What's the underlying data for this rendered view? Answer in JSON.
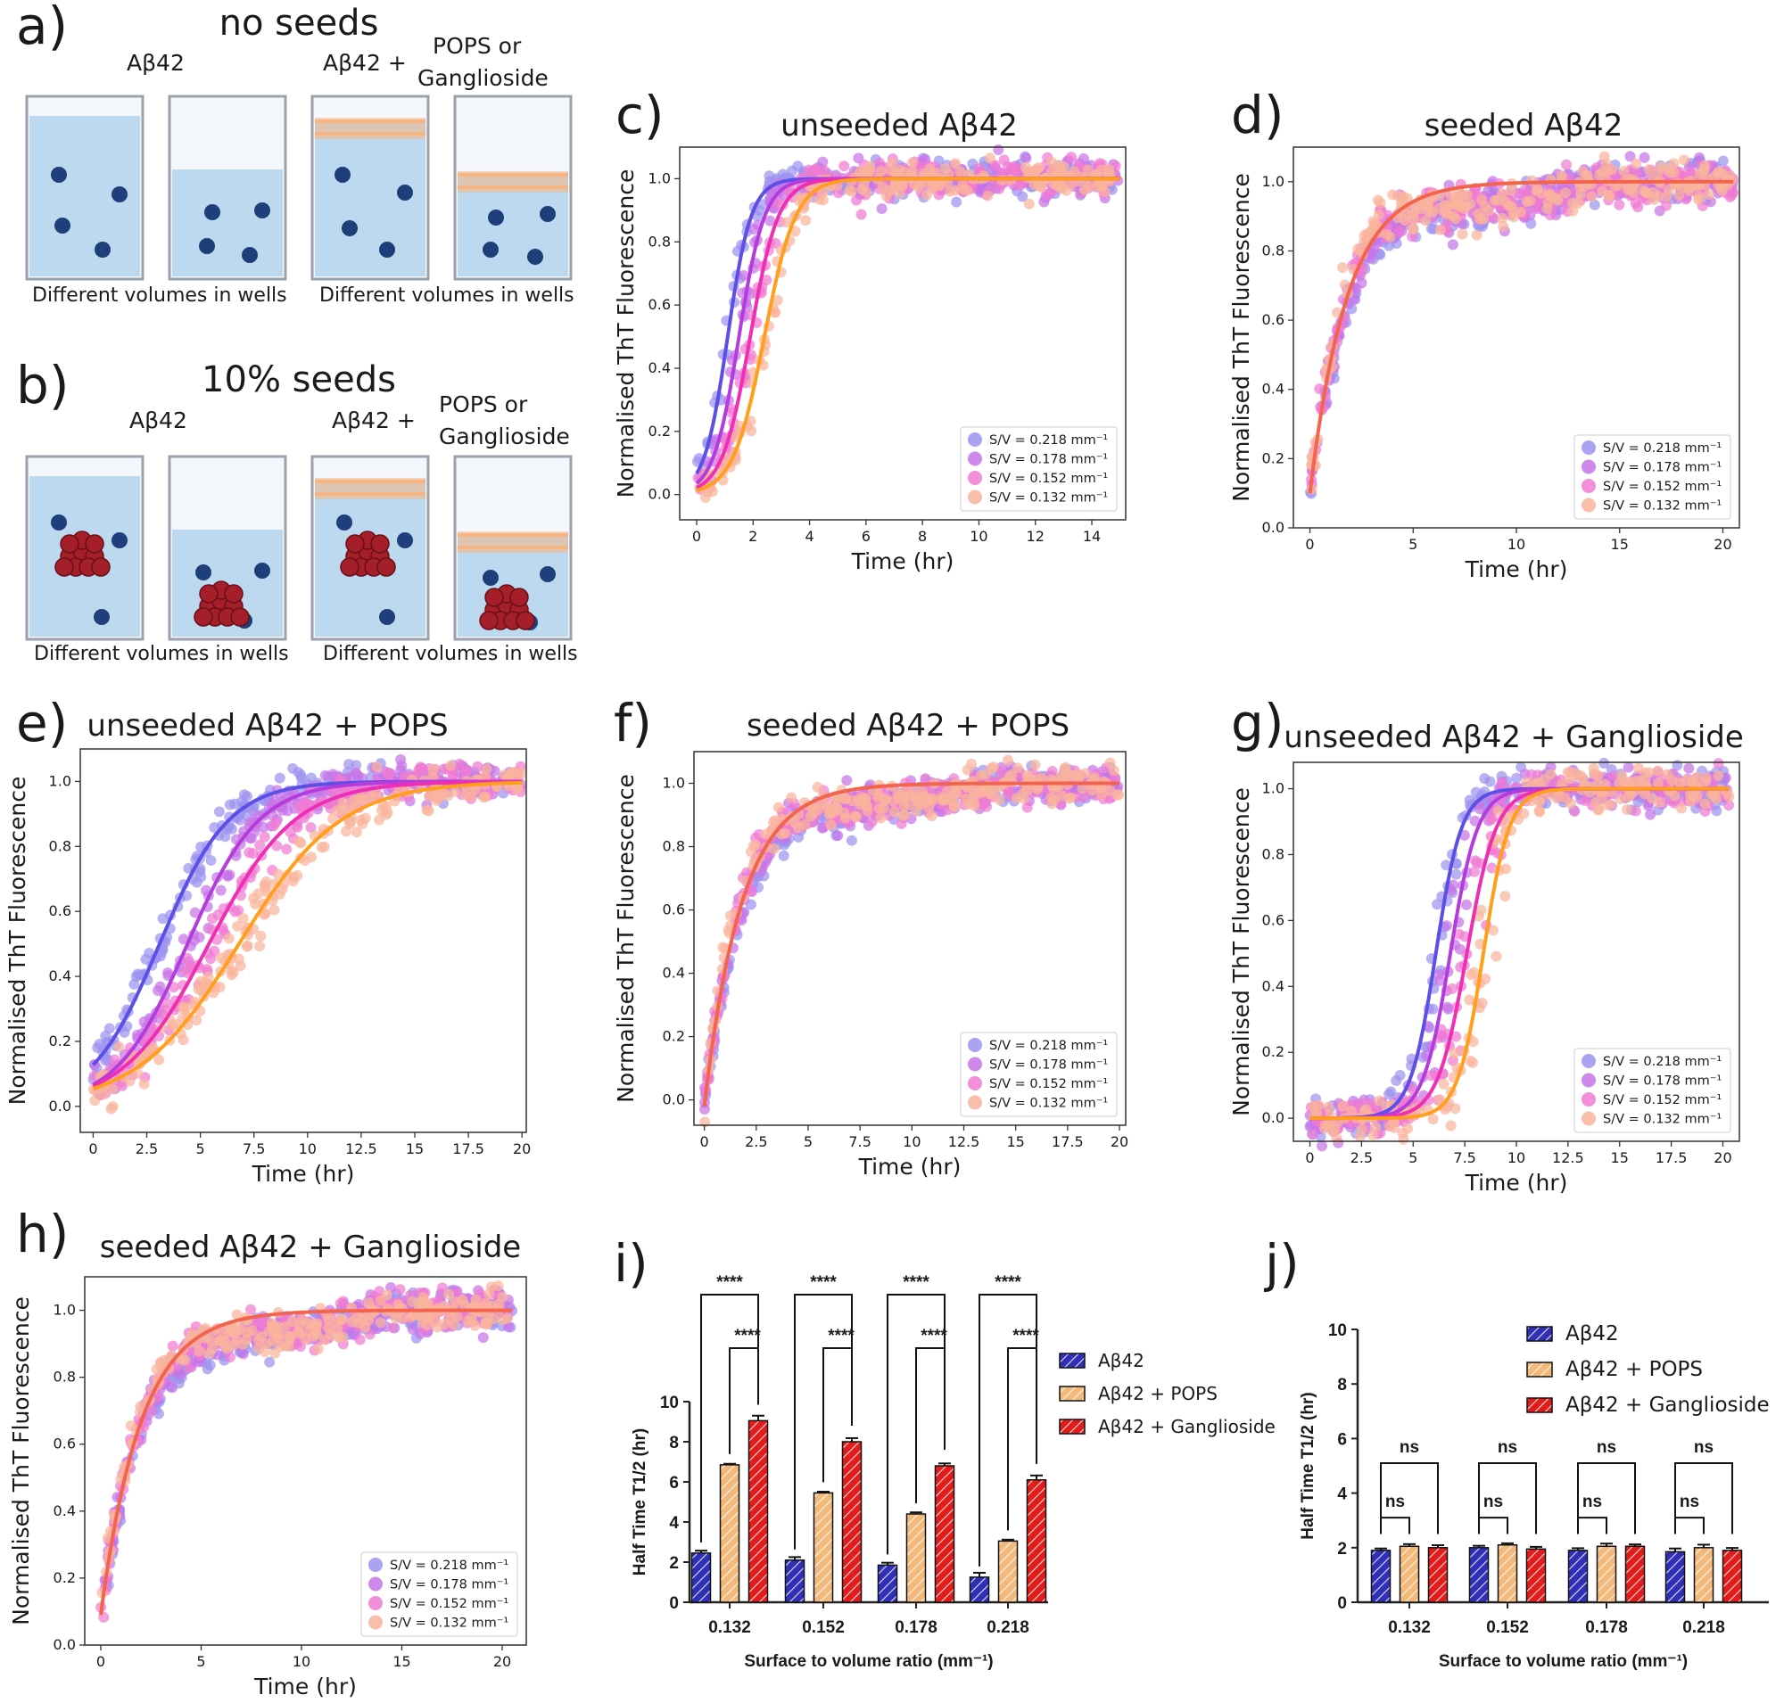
{
  "colors": {
    "s218": "#9c93f0",
    "s178": "#c774e8",
    "s152": "#f07bd2",
    "s132": "#f9b49c",
    "f218": "#5b4fe6",
    "f178": "#b43bdc",
    "f152": "#ee2fb4",
    "f132": "#ff9f1c",
    "fseed": "#f2644b",
    "bar_ab42": "#2f2fb8",
    "bar_pops": "#f3b97a",
    "bar_gang": "#e21b1b",
    "liquid": "#bcd9f0",
    "bead": "#1f3f7a",
    "seed": "#a41f2a",
    "lipid": "#f6b482"
  },
  "schematics": {
    "a": {
      "panel_label": "a)",
      "title": "no seeds",
      "left_label": "Aβ42",
      "right_label": "Aβ42  +",
      "lipid_label_1": "POPS or",
      "lipid_label_2": "Ganglioside",
      "caption_left": "Different volumes in wells",
      "caption_right": "Different volumes in wells"
    },
    "b": {
      "panel_label": "b)",
      "title": "10% seeds",
      "left_label": "Aβ42",
      "right_label": "Aβ42  +",
      "lipid_label_1": "POPS or",
      "lipid_label_2": "Ganglioside",
      "caption_left": "Different volumes in wells",
      "caption_right": "Different volumes in wells"
    }
  },
  "legend_labels": [
    "S/V = 0.218 mm⁻¹",
    "S/V = 0.178 mm⁻¹",
    "S/V = 0.152 mm⁻¹",
    "S/V = 0.132 mm⁻¹"
  ],
  "chart_data": [
    {
      "id": "c",
      "panel_label": "c)",
      "type": "scatter",
      "title": "unseeded Aβ42",
      "xlabel": "Time (hr)",
      "ylabel": "Normalised ThT Fluorescence",
      "xlim": [
        -0.6,
        15.2
      ],
      "ylim": [
        -0.08,
        1.1
      ],
      "xticks": [
        0,
        2,
        4,
        6,
        8,
        10,
        12,
        14
      ],
      "yticks": [
        0.0,
        0.2,
        0.4,
        0.6,
        0.8,
        1.0
      ],
      "tmax": 15,
      "series": [
        {
          "name": "S/V = 0.218 mm⁻¹",
          "t_half": 1.1,
          "rate": 2.4,
          "end": 1.0
        },
        {
          "name": "S/V = 0.178 mm⁻¹",
          "t_half": 1.5,
          "rate": 2.2,
          "end": 1.0
        },
        {
          "name": "S/V = 0.152 mm⁻¹",
          "t_half": 1.9,
          "rate": 2.0,
          "end": 1.0
        },
        {
          "name": "S/V = 0.132 mm⁻¹",
          "t_half": 2.4,
          "rate": 1.8,
          "end": 1.0
        }
      ],
      "grid": false,
      "legend": "bottom-right"
    },
    {
      "id": "d",
      "panel_label": "d)",
      "type": "scatter",
      "title": "seeded Aβ42",
      "xlabel": "Time (hr)",
      "ylabel": "Normalised ThT Fluorescence",
      "xlim": [
        -0.8,
        20.8
      ],
      "ylim": [
        0.0,
        1.1
      ],
      "xticks": [
        0,
        5,
        10,
        15,
        20
      ],
      "yticks": [
        0.0,
        0.2,
        0.4,
        0.6,
        0.8,
        1.0
      ],
      "tmax": 20.5,
      "seeded": true,
      "y0": 0.1,
      "k": 0.55,
      "series": [
        {
          "name": "S/V = 0.218 mm⁻¹"
        },
        {
          "name": "S/V = 0.178 mm⁻¹"
        },
        {
          "name": "S/V = 0.152 mm⁻¹"
        },
        {
          "name": "S/V = 0.132 mm⁻¹"
        }
      ],
      "grid": false,
      "legend": "bottom-right"
    },
    {
      "id": "e",
      "panel_label": "e)",
      "type": "scatter",
      "title": "unseeded Aβ42 + POPS",
      "xlabel": "Time (hr)",
      "ylabel": "Normalised ThT Fluorescence",
      "xlim": [
        -0.6,
        20.2
      ],
      "ylim": [
        -0.08,
        1.1
      ],
      "xticks": [
        0,
        2.5,
        5,
        7.5,
        10,
        12.5,
        15,
        17.5,
        20
      ],
      "yticks": [
        0.0,
        0.2,
        0.4,
        0.6,
        0.8,
        1.0
      ],
      "tmax": 20,
      "series": [
        {
          "name": "S/V = 0.218 mm⁻¹",
          "t_half": 3.1,
          "rate": 0.62,
          "end": 1.0
        },
        {
          "name": "S/V = 0.178 mm⁻¹",
          "t_half": 4.4,
          "rate": 0.6,
          "end": 1.0
        },
        {
          "name": "S/V = 0.152 mm⁻¹",
          "t_half": 5.4,
          "rate": 0.5,
          "end": 1.0
        },
        {
          "name": "S/V = 0.132 mm⁻¹",
          "t_half": 6.8,
          "rate": 0.42,
          "end": 1.0
        }
      ],
      "grid": false,
      "legend": "none"
    },
    {
      "id": "f",
      "panel_label": "f)",
      "type": "scatter",
      "title": "seeded Aβ42 + POPS",
      "xlabel": "Time (hr)",
      "ylabel": "Normalised ThT Fluorescence",
      "xlim": [
        -0.5,
        20.3
      ],
      "ylim": [
        -0.08,
        1.1
      ],
      "xticks": [
        0,
        2.5,
        5,
        7.5,
        10,
        12.5,
        15,
        17.5,
        20
      ],
      "yticks": [
        0.0,
        0.2,
        0.4,
        0.6,
        0.8,
        1.0
      ],
      "tmax": 20,
      "seeded": true,
      "y0": -0.02,
      "k": 0.55,
      "series": [
        {
          "name": "S/V = 0.218 mm⁻¹"
        },
        {
          "name": "S/V = 0.178 mm⁻¹"
        },
        {
          "name": "S/V = 0.152 mm⁻¹"
        },
        {
          "name": "S/V = 0.132 mm⁻¹"
        }
      ],
      "grid": false,
      "legend": "bottom-right"
    },
    {
      "id": "g",
      "panel_label": "g)",
      "type": "scatter",
      "title": "unseeded Aβ42 + Ganglioside",
      "xlabel": "Time (hr)",
      "ylabel": "Normalised ThT Fluorescence",
      "xlim": [
        -0.8,
        20.8
      ],
      "ylim": [
        -0.07,
        1.08
      ],
      "xticks": [
        0,
        2.5,
        5,
        7.5,
        10,
        12.5,
        15,
        17.5,
        20
      ],
      "yticks": [
        0.0,
        0.2,
        0.4,
        0.6,
        0.8,
        1.0
      ],
      "tmax": 20.3,
      "series": [
        {
          "name": "S/V = 0.218 mm⁻¹",
          "t_half": 6.1,
          "rate": 1.6,
          "end": 1.0
        },
        {
          "name": "S/V = 0.178 mm⁻¹",
          "t_half": 6.8,
          "rate": 1.5,
          "end": 1.0
        },
        {
          "name": "S/V = 0.152 mm⁻¹",
          "t_half": 7.6,
          "rate": 1.4,
          "end": 1.0
        },
        {
          "name": "S/V = 0.132 mm⁻¹",
          "t_half": 8.4,
          "rate": 1.6,
          "end": 1.0
        }
      ],
      "grid": false,
      "legend": "bottom-right"
    },
    {
      "id": "h",
      "panel_label": "h)",
      "type": "scatter",
      "title": "seeded Aβ42 + Ganglioside",
      "xlabel": "Time (hr)",
      "ylabel": "Normalised ThT Fluorescence",
      "xlim": [
        -0.8,
        21.2
      ],
      "ylim": [
        0.0,
        1.1
      ],
      "xticks": [
        0,
        5,
        10,
        15,
        20
      ],
      "yticks": [
        0.0,
        0.2,
        0.4,
        0.6,
        0.8,
        1.0
      ],
      "tmax": 20.5,
      "seeded": true,
      "y0": 0.09,
      "k": 0.5,
      "series": [
        {
          "name": "S/V = 0.218 mm⁻¹"
        },
        {
          "name": "S/V = 0.178 mm⁻¹"
        },
        {
          "name": "S/V = 0.152 mm⁻¹"
        },
        {
          "name": "S/V = 0.132 mm⁻¹"
        }
      ],
      "grid": false,
      "legend": "bottom-right"
    },
    {
      "id": "i",
      "panel_label": "i)",
      "type": "bar",
      "xlabel": "Surface to volume ratio (mm⁻¹)",
      "ylabel": "Half Time T1/2 (hr)",
      "categories": [
        "0.132",
        "0.152",
        "0.178",
        "0.218"
      ],
      "ylim": [
        0,
        10
      ],
      "yticks": [
        0,
        2,
        4,
        6,
        8,
        10
      ],
      "series": [
        {
          "name": "Aβ42",
          "values": [
            2.45,
            2.1,
            1.85,
            1.25
          ],
          "errors": [
            0.12,
            0.15,
            0.12,
            0.22
          ]
        },
        {
          "name": "Aβ42 + POPS",
          "values": [
            6.85,
            5.45,
            4.4,
            3.05
          ],
          "errors": [
            0.05,
            0.06,
            0.08,
            0.07
          ]
        },
        {
          "name": "Aβ42 + Ganglioside",
          "values": [
            9.05,
            8.0,
            6.8,
            6.1
          ],
          "errors": [
            0.25,
            0.18,
            0.12,
            0.22
          ]
        }
      ],
      "significance": [
        "****",
        "****"
      ],
      "legend": "right"
    },
    {
      "id": "j",
      "panel_label": "j)",
      "type": "bar",
      "xlabel": "Surface to volume ratio (mm⁻¹)",
      "ylabel": "Half Time T1/2 (hr)",
      "categories": [
        "0.132",
        "0.152",
        "0.178",
        "0.218"
      ],
      "ylim": [
        0,
        10
      ],
      "yticks": [
        0,
        2,
        4,
        6,
        8,
        10
      ],
      "series": [
        {
          "name": "Aβ42",
          "values": [
            1.9,
            2.0,
            1.9,
            1.85
          ],
          "errors": [
            0.07,
            0.07,
            0.08,
            0.12
          ]
        },
        {
          "name": "Aβ42 + POPS",
          "values": [
            2.05,
            2.1,
            2.05,
            2.0
          ],
          "errors": [
            0.08,
            0.06,
            0.1,
            0.11
          ]
        },
        {
          "name": "Aβ42 + Ganglioside",
          "values": [
            2.0,
            1.95,
            2.05,
            1.9
          ],
          "errors": [
            0.09,
            0.08,
            0.07,
            0.09
          ]
        }
      ],
      "significance": [
        "ns",
        "ns"
      ],
      "legend": "top-right"
    }
  ]
}
